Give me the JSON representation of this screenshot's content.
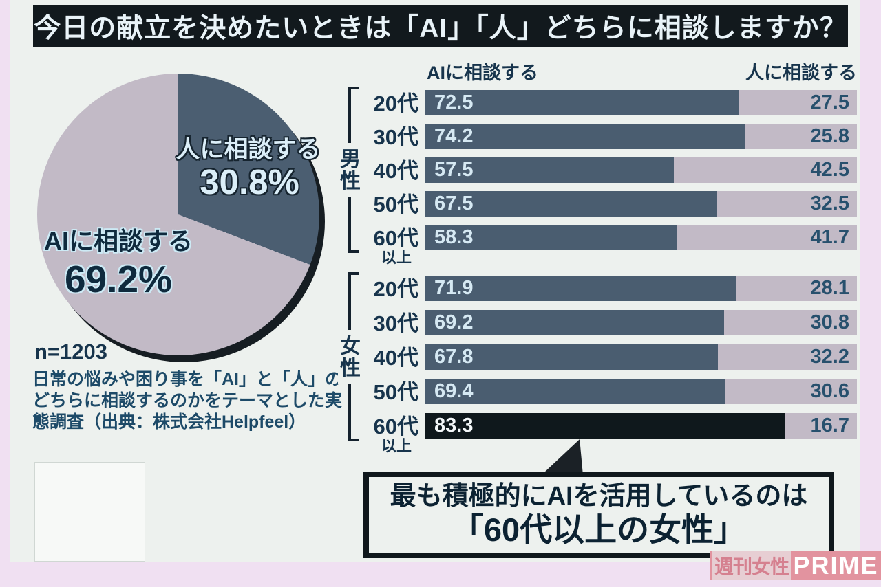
{
  "title": "今日の献立を決めたいときは「AI」「人」どちらに相談しますか？",
  "colors": {
    "outer_bg": "#f0e0f2",
    "panel_bg": "#edf1ee",
    "title_bg": "#12191d",
    "title_fg": "#e9f3f8",
    "ink": "#17344c",
    "pie_dark": "#4b5e71",
    "pie_light": "#c2bac6",
    "bar_dark": "#4a5d70",
    "bar_light": "#c2bac6",
    "bar_highlight": "#0f181c",
    "value_on_dark": "#d6e9f3",
    "value_on_highlight": "#f4f8fa",
    "value_on_light": "#27506d",
    "logo_pink": "#e2939f",
    "logo_badge_bg": "#e7ced3",
    "logo_badge_fg": "#d5808f"
  },
  "caption_lines": [
    "日常の悩みや困り事を「AI」と「人」の",
    "どちらに相談するのかをテーマとした実",
    "態調査（出典：株式会社Helpfeel）"
  ],
  "callout": {
    "line1": "最も積極的にAIを活用しているのは",
    "line2": "「60代以上の女性」"
  },
  "logo": {
    "left": "週刊女性",
    "right": "PRIME"
  },
  "chart_data": [
    {
      "type": "pie",
      "title": "今日の献立を決めたいときは「AI」「人」どちらに相談しますか？",
      "n": "n=1203",
      "unit": "%",
      "slices": [
        {
          "label": "人に相談する",
          "value": 30.8,
          "display": "30.8%"
        },
        {
          "label": "AIに相談する",
          "value": 69.2,
          "display": "69.2%"
        }
      ]
    },
    {
      "type": "bar",
      "subtype": "horizontal-stacked-100pct",
      "series": [
        "AIに相談する",
        "人に相談する"
      ],
      "unit": "%",
      "xlim": [
        0,
        100
      ],
      "groups": [
        {
          "group": "男性",
          "categories": [
            "20代",
            "30代",
            "40代",
            "50代",
            "60代以上"
          ],
          "ai_values": [
            72.5,
            74.2,
            57.5,
            67.5,
            58.3
          ],
          "hito_values": [
            27.5,
            25.8,
            42.5,
            32.5,
            41.7
          ]
        },
        {
          "group": "女性",
          "categories": [
            "20代",
            "30代",
            "40代",
            "50代",
            "60代以上"
          ],
          "ai_values": [
            71.9,
            69.2,
            67.8,
            69.4,
            83.3
          ],
          "hito_values": [
            28.1,
            30.8,
            32.2,
            30.6,
            16.7
          ]
        }
      ],
      "highlight": {
        "group_index": 1,
        "row_index": 4,
        "note": "最も積極的にAIを活用しているのは「60代以上の女性」"
      }
    }
  ]
}
